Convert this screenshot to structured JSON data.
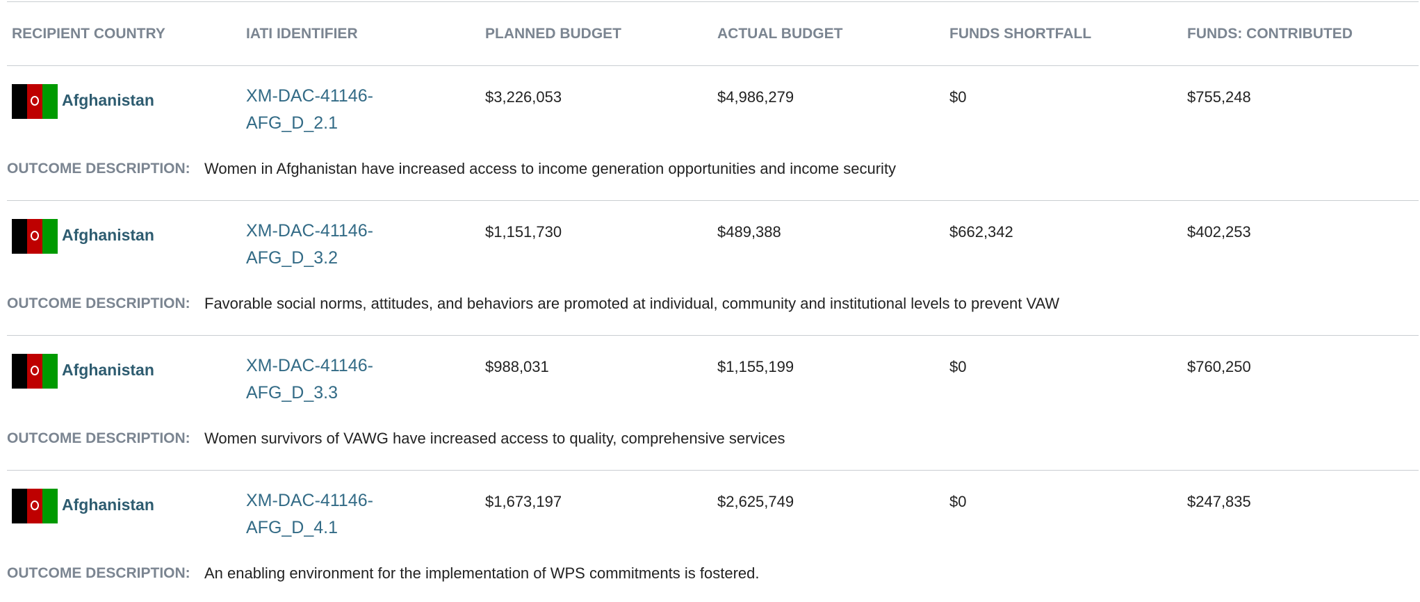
{
  "table": {
    "headers": [
      "RECIPIENT COUNTRY",
      "IATI IDENTIFIER",
      "PLANNED BUDGET",
      "ACTUAL BUDGET",
      "FUNDS SHORTFALL",
      "FUNDS: CONTRIBUTED"
    ],
    "outcome_label": "OUTCOME DESCRIPTION:",
    "rows": [
      {
        "country": "Afghanistan",
        "identifier": "XM-DAC-41146-AFG_D_2.1",
        "planned": "$3,226,053",
        "actual": "$4,986,279",
        "shortfall": "$0",
        "contributed": "$755,248",
        "outcome": "Women in Afghanistan have increased access to income generation opportunities and income security"
      },
      {
        "country": "Afghanistan",
        "identifier": "XM-DAC-41146-AFG_D_3.2",
        "planned": "$1,151,730",
        "actual": "$489,388",
        "shortfall": "$662,342",
        "contributed": "$402,253",
        "outcome": "Favorable social norms, attitudes, and behaviors are promoted at individual, community and institutional levels to prevent VAW"
      },
      {
        "country": "Afghanistan",
        "identifier": "XM-DAC-41146-AFG_D_3.3",
        "planned": "$988,031",
        "actual": "$1,155,199",
        "shortfall": "$0",
        "contributed": "$760,250",
        "outcome": "Women survivors of VAWG have increased access to quality, comprehensive services"
      },
      {
        "country": "Afghanistan",
        "identifier": "XM-DAC-41146-AFG_D_4.1",
        "planned": "$1,673,197",
        "actual": "$2,625,749",
        "shortfall": "$0",
        "contributed": "$247,835",
        "outcome": "An enabling environment for the implementation of WPS commitments is fostered."
      }
    ]
  }
}
